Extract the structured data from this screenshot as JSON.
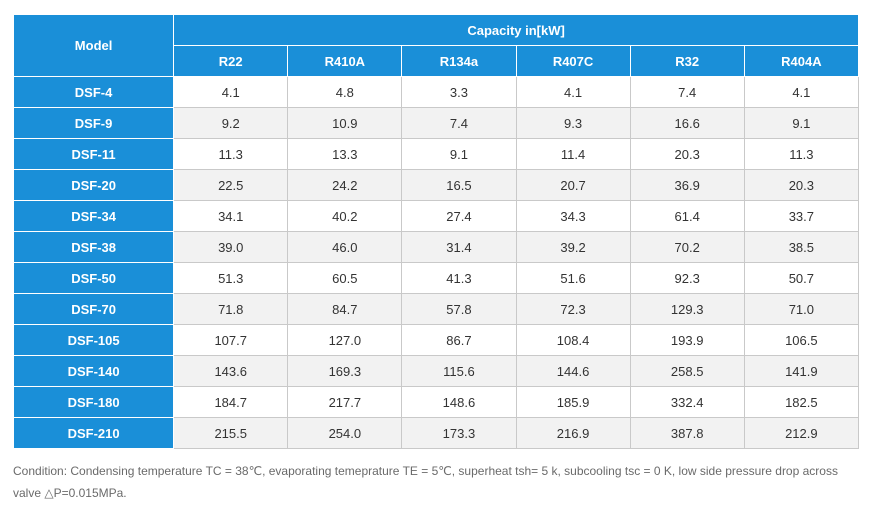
{
  "table": {
    "model_header": "Model",
    "capacity_header": "Capacity in[kW]",
    "refrigerants": [
      "R22",
      "R410A",
      "R134a",
      "R407C",
      "R32",
      "R404A"
    ],
    "rows": [
      {
        "model": "DSF-4",
        "values": [
          "4.1",
          "4.8",
          "3.3",
          "4.1",
          "7.4",
          "4.1"
        ]
      },
      {
        "model": "DSF-9",
        "values": [
          "9.2",
          "10.9",
          "7.4",
          "9.3",
          "16.6",
          "9.1"
        ]
      },
      {
        "model": "DSF-11",
        "values": [
          "11.3",
          "13.3",
          "9.1",
          "11.4",
          "20.3",
          "11.3"
        ]
      },
      {
        "model": "DSF-20",
        "values": [
          "22.5",
          "24.2",
          "16.5",
          "20.7",
          "36.9",
          "20.3"
        ]
      },
      {
        "model": "DSF-34",
        "values": [
          "34.1",
          "40.2",
          "27.4",
          "34.3",
          "61.4",
          "33.7"
        ]
      },
      {
        "model": "DSF-38",
        "values": [
          "39.0",
          "46.0",
          "31.4",
          "39.2",
          "70.2",
          "38.5"
        ]
      },
      {
        "model": "DSF-50",
        "values": [
          "51.3",
          "60.5",
          "41.3",
          "51.6",
          "92.3",
          "50.7"
        ]
      },
      {
        "model": "DSF-70",
        "values": [
          "71.8",
          "84.7",
          "57.8",
          "72.3",
          "129.3",
          "71.0"
        ]
      },
      {
        "model": "DSF-105",
        "values": [
          "107.7",
          "127.0",
          "86.7",
          "108.4",
          "193.9",
          "106.5"
        ]
      },
      {
        "model": "DSF-140",
        "values": [
          "143.6",
          "169.3",
          "115.6",
          "144.6",
          "258.5",
          "141.9"
        ]
      },
      {
        "model": "DSF-180",
        "values": [
          "184.7",
          "217.7",
          "148.6",
          "185.9",
          "332.4",
          "182.5"
        ]
      },
      {
        "model": "DSF-210",
        "values": [
          "215.5",
          "254.0",
          "173.3",
          "216.9",
          "387.8",
          "212.9"
        ]
      }
    ]
  },
  "note": "Condition: Condensing temperature TC = 38℃, evaporating temeprature TE = 5℃, superheat tsh= 5 k, subcooling tsc = 0 K, low side pressure drop across valve △P=0.015MPa.",
  "colors": {
    "header_bg": "#1a8fd8",
    "header_text": "#ffffff",
    "row_alt_bg": "#f2f2f2",
    "cell_text": "#333333",
    "note_text": "#6a6a6a"
  }
}
